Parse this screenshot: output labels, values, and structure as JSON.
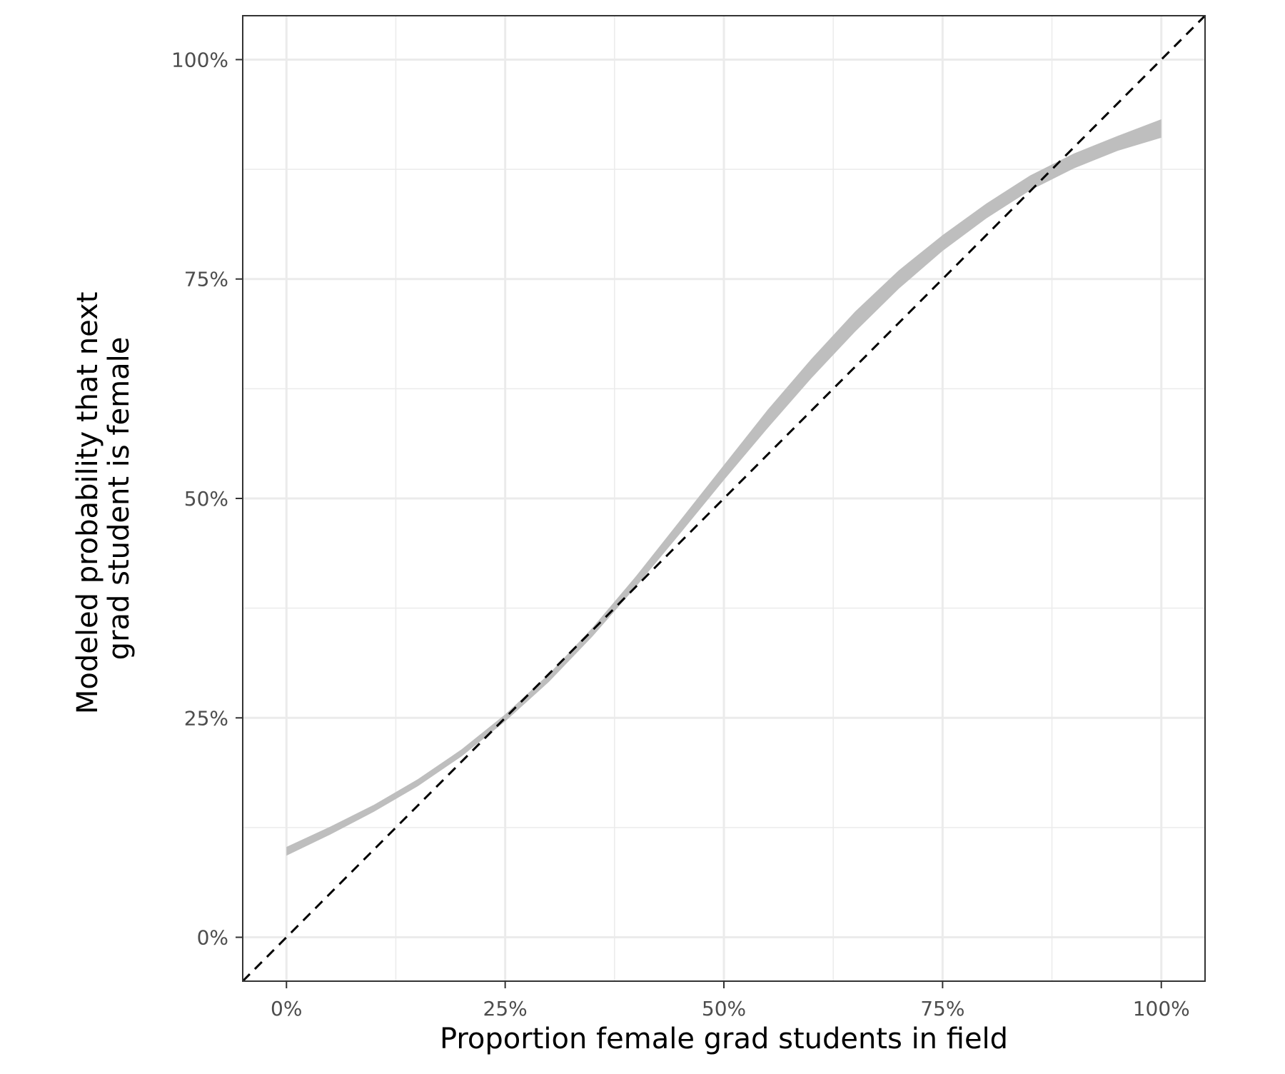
{
  "chart_data": {
    "type": "line",
    "title": "",
    "xlabel": "Proportion female grad students in field",
    "ylabel_lines": [
      "Modeled probability that next",
      "grad student is female"
    ],
    "xlim": [
      -0.05,
      1.05
    ],
    "ylim": [
      -0.05,
      1.05
    ],
    "grid": true,
    "x_major_ticks": [
      0,
      0.25,
      0.5,
      0.75,
      1.0
    ],
    "x_tick_labels": [
      "0%",
      "25%",
      "50%",
      "75%",
      "100%"
    ],
    "x_minor_ticks": [
      0.125,
      0.375,
      0.625,
      0.875
    ],
    "y_major_ticks": [
      0,
      0.25,
      0.5,
      0.75,
      1.0
    ],
    "y_tick_labels": [
      "0%",
      "25%",
      "50%",
      "75%",
      "100%"
    ],
    "y_minor_ticks": [
      0.125,
      0.375,
      0.625,
      0.875
    ],
    "colors": {
      "ribbon": "#bebebe",
      "reference_line": "#000000",
      "grid": "#ebebeb",
      "panel_border": "#333333",
      "tick_text": "#4d4d4d"
    },
    "series": [
      {
        "name": "modeled-probability-ribbon",
        "kind": "ribbon",
        "x": [
          0.0,
          0.05,
          0.1,
          0.15,
          0.2,
          0.25,
          0.3,
          0.35,
          0.4,
          0.45,
          0.5,
          0.55,
          0.6,
          0.65,
          0.7,
          0.75,
          0.8,
          0.85,
          0.9,
          0.95,
          1.0
        ],
        "lower": [
          0.093,
          0.117,
          0.143,
          0.172,
          0.206,
          0.246,
          0.291,
          0.343,
          0.4,
          0.46,
          0.521,
          0.58,
          0.637,
          0.69,
          0.739,
          0.782,
          0.819,
          0.851,
          0.876,
          0.896,
          0.911
        ],
        "upper": [
          0.103,
          0.126,
          0.151,
          0.18,
          0.214,
          0.254,
          0.3,
          0.353,
          0.412,
          0.475,
          0.538,
          0.601,
          0.659,
          0.713,
          0.76,
          0.8,
          0.836,
          0.868,
          0.893,
          0.913,
          0.932
        ]
      },
      {
        "name": "reference-line-y-equals-x",
        "kind": "line",
        "style": "dashed",
        "x": [
          -0.05,
          1.05
        ],
        "y": [
          -0.05,
          1.05
        ]
      }
    ]
  }
}
